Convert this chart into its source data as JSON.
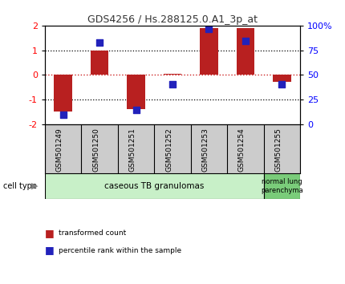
{
  "title": "GDS4256 / Hs.288125.0.A1_3p_at",
  "samples": [
    "GSM501249",
    "GSM501250",
    "GSM501251",
    "GSM501252",
    "GSM501253",
    "GSM501254",
    "GSM501255"
  ],
  "red_bars": [
    -1.5,
    1.0,
    -1.4,
    0.05,
    1.9,
    1.9,
    -0.3
  ],
  "blue_dots": [
    -1.62,
    1.3,
    -1.42,
    -0.38,
    1.88,
    1.38,
    -0.38
  ],
  "ylim": [
    -2,
    2
  ],
  "groups": [
    {
      "label": "caseous TB granulomas",
      "start": 0,
      "end": 5,
      "color": "#c8f0c8"
    },
    {
      "label": "normal lung\nparenchyma",
      "start": 6,
      "end": 6,
      "color": "#7acc7a"
    }
  ],
  "legend_red": "transformed count",
  "legend_blue": "percentile rank within the sample",
  "bar_color": "#b82020",
  "dot_color": "#2222bb",
  "background_color": "#ffffff",
  "sample_box_color": "#cccccc",
  "zero_line_color": "#cc2222",
  "title_fontsize": 9,
  "bar_width": 0.5
}
